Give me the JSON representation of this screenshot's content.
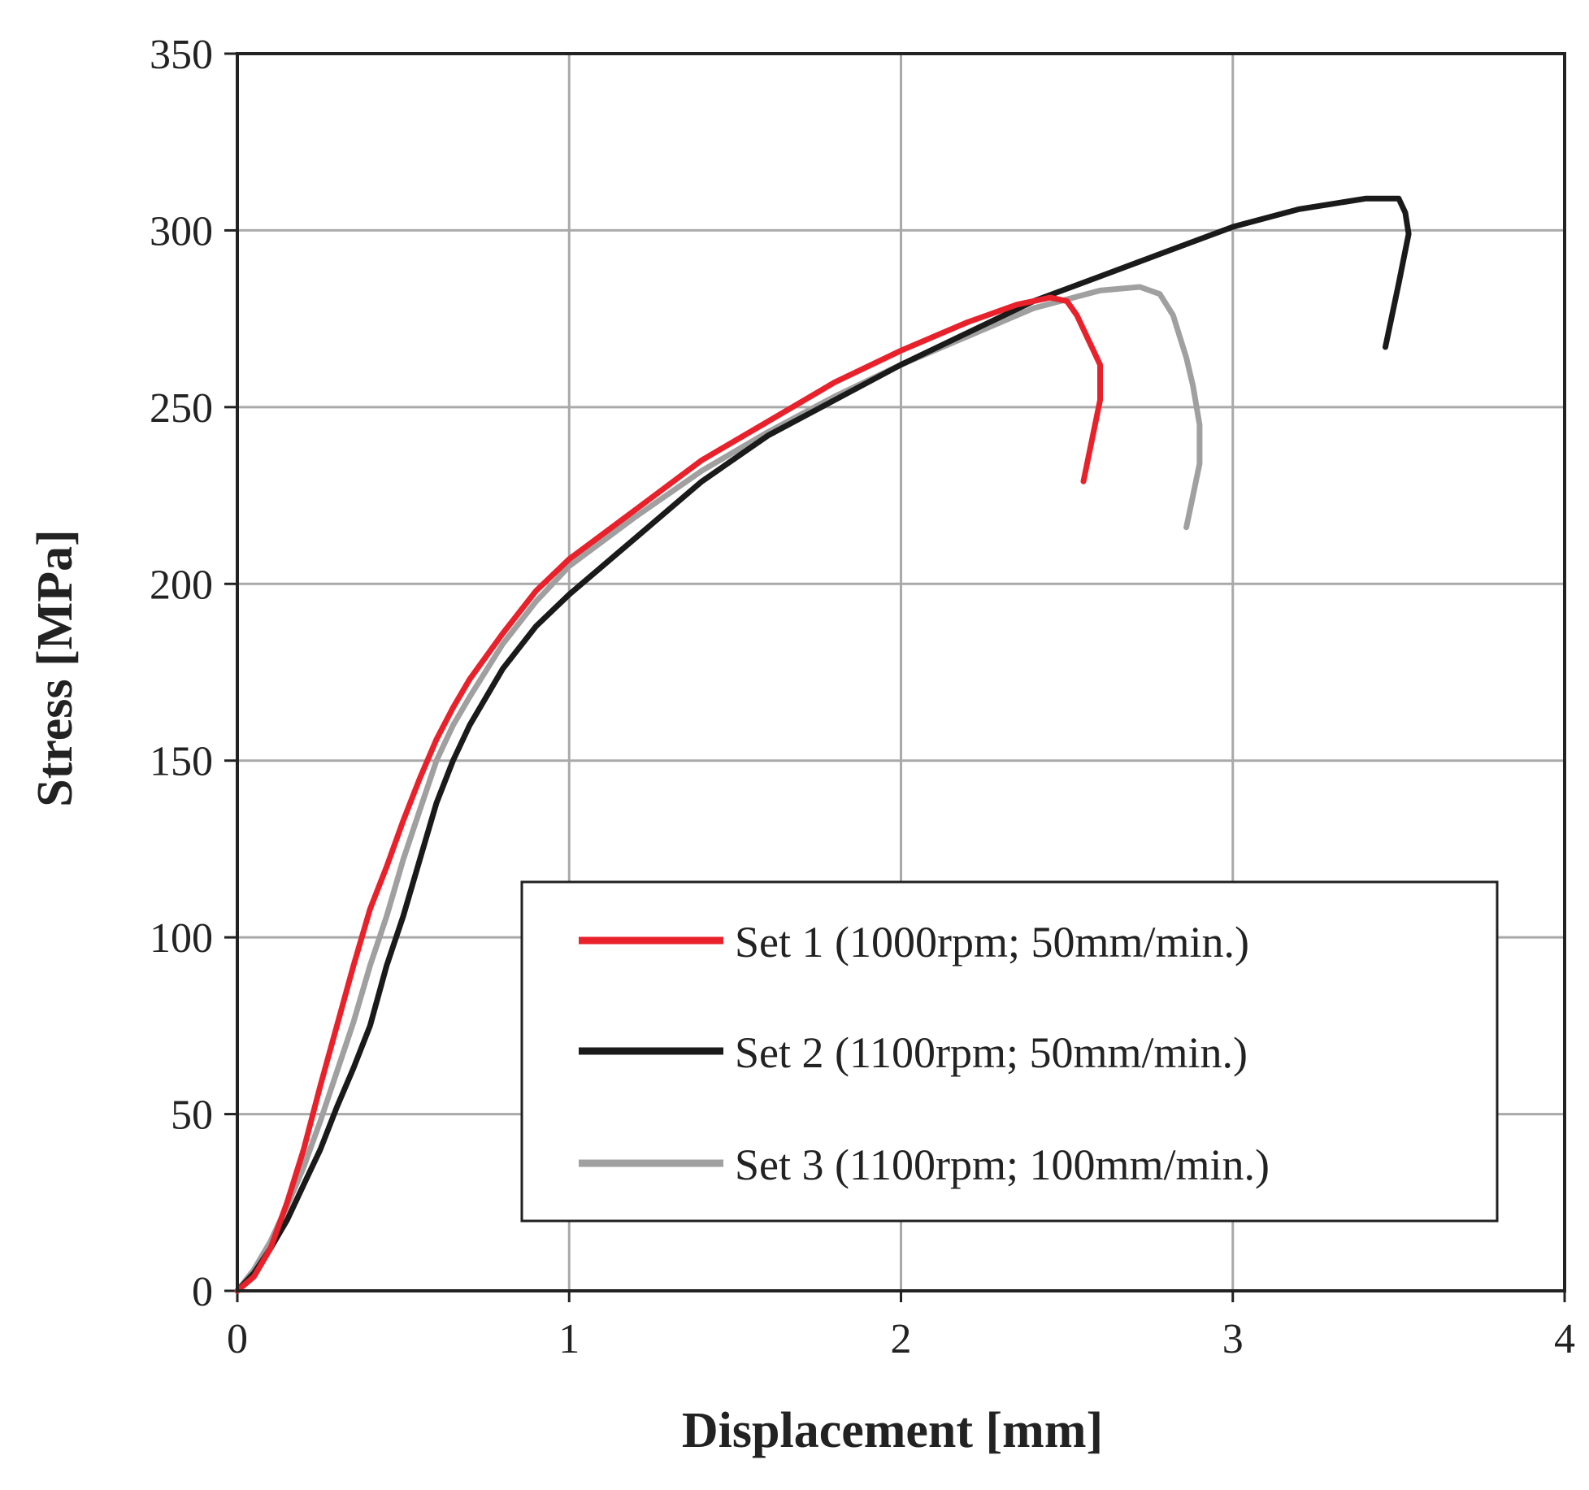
{
  "chart_data": {
    "type": "line",
    "title": "",
    "xlabel": "Displacement [mm]",
    "ylabel": "Stress [MPa]",
    "xlim": [
      0,
      4
    ],
    "ylim": [
      0,
      350
    ],
    "xticks": [
      0,
      1,
      2,
      3,
      4
    ],
    "yticks": [
      0,
      50,
      100,
      150,
      200,
      250,
      300,
      350
    ],
    "xtick_labels": [
      "0",
      "1",
      "2",
      "3",
      "4"
    ],
    "ytick_labels": [
      "0",
      "50",
      "100",
      "150",
      "200",
      "250",
      "300",
      "350"
    ],
    "grid": true,
    "legend_position": "lower-right",
    "series": [
      {
        "name": "Set 1 (1000rpm; 50mm/min.)",
        "color": "#e8212b",
        "x": [
          0,
          0.05,
          0.1,
          0.15,
          0.2,
          0.25,
          0.3,
          0.35,
          0.4,
          0.45,
          0.5,
          0.55,
          0.6,
          0.65,
          0.7,
          0.8,
          0.9,
          1.0,
          1.2,
          1.4,
          1.6,
          1.8,
          2.0,
          2.2,
          2.35,
          2.45,
          2.5,
          2.53,
          2.56,
          2.58,
          2.6,
          2.6,
          2.55
        ],
        "y": [
          0,
          4,
          12,
          25,
          40,
          58,
          75,
          92,
          108,
          120,
          133,
          145,
          156,
          165,
          173,
          186,
          198,
          207,
          221,
          235,
          246,
          257,
          266,
          274,
          279,
          281,
          280,
          276,
          270,
          266,
          262,
          252,
          229
        ]
      },
      {
        "name": "Set 2 (1100rpm; 50mm/min.)",
        "color": "#1a1a1a",
        "x": [
          0,
          0.05,
          0.1,
          0.15,
          0.2,
          0.25,
          0.3,
          0.35,
          0.4,
          0.45,
          0.5,
          0.55,
          0.6,
          0.65,
          0.7,
          0.8,
          0.9,
          1.0,
          1.2,
          1.4,
          1.6,
          1.8,
          2.0,
          2.2,
          2.4,
          2.6,
          2.8,
          3.0,
          3.2,
          3.4,
          3.5,
          3.52,
          3.53,
          3.5,
          3.46
        ],
        "y": [
          0,
          5,
          12,
          20,
          30,
          40,
          52,
          63,
          75,
          92,
          106,
          122,
          138,
          150,
          160,
          176,
          188,
          197,
          213,
          229,
          242,
          252,
          262,
          271,
          280,
          287,
          294,
          301,
          306,
          309,
          309,
          305,
          299,
          285,
          267
        ]
      },
      {
        "name": "Set 3 (1100rpm; 100mm/min.)",
        "color": "#a0a0a0",
        "x": [
          0,
          0.05,
          0.1,
          0.15,
          0.2,
          0.25,
          0.3,
          0.35,
          0.4,
          0.45,
          0.5,
          0.55,
          0.6,
          0.65,
          0.7,
          0.8,
          0.9,
          1.0,
          1.2,
          1.4,
          1.6,
          1.8,
          2.0,
          2.2,
          2.4,
          2.6,
          2.72,
          2.78,
          2.82,
          2.84,
          2.86,
          2.88,
          2.9,
          2.9,
          2.88,
          2.86
        ],
        "y": [
          0,
          6,
          14,
          24,
          35,
          48,
          62,
          76,
          92,
          106,
          122,
          136,
          150,
          160,
          168,
          183,
          195,
          205,
          219,
          232,
          243,
          253,
          262,
          270,
          278,
          283,
          284,
          282,
          276,
          270,
          264,
          256,
          245,
          234,
          225,
          216
        ]
      }
    ]
  }
}
